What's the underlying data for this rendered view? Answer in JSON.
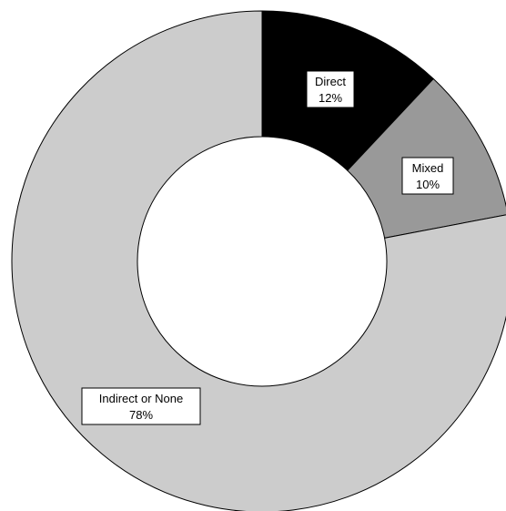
{
  "chart_data": {
    "type": "pie",
    "donut": true,
    "title": "",
    "start_angle_deg": 0,
    "direction": "clockwise",
    "slices": [
      {
        "label": "Direct",
        "value": 12,
        "value_label": "12%",
        "color": "#000000"
      },
      {
        "label": "Mixed",
        "value": 10,
        "value_label": "10%",
        "color": "#999999"
      },
      {
        "label": "Indirect or None",
        "value": 78,
        "value_label": "78%",
        "color": "#cccccc"
      }
    ]
  }
}
